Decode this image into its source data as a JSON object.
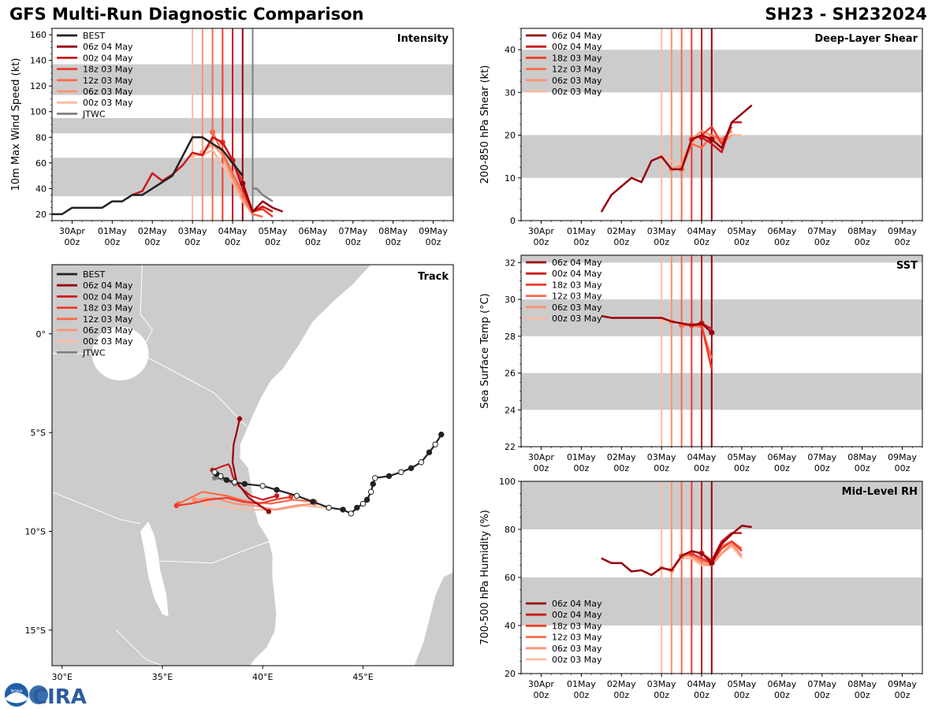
{
  "header": {
    "title": "GFS Multi-Run Diagnostic Comparison",
    "storm_id": "SH23 - SH232024"
  },
  "colors": {
    "best": "#222222",
    "jtwc": "#808080",
    "band": "#cccccc",
    "run_06z04": "#99000d",
    "run_00z04": "#cb181d",
    "run_18z03": "#ef3b2c",
    "run_12z03": "#fb6a4a",
    "run_06z03": "#fc9272",
    "run_00z03": "#fcbba1",
    "land": "#cccccc"
  },
  "time_axis": {
    "days": [
      "30Apr",
      "01May",
      "02May",
      "03May",
      "04May",
      "05May",
      "06May",
      "07May",
      "08May",
      "09May"
    ],
    "hour_label": "00z"
  },
  "logos": {
    "noaa": "NOAA",
    "cira": "CIRA"
  },
  "chart_data": [
    {
      "id": "intensity",
      "type": "line",
      "title": "Intensity",
      "xlabel": "",
      "ylabel": "10m Max Wind Speed (kt)",
      "x_units": "days since 30Apr 00z",
      "ylim": [
        15,
        165
      ],
      "yticks": [
        20,
        40,
        60,
        80,
        100,
        120,
        140,
        160
      ],
      "bands": [
        [
          34,
          64
        ],
        [
          83,
          95
        ],
        [
          113,
          137
        ]
      ],
      "init_lines": [
        3.0,
        3.25,
        3.5,
        3.75,
        4.0,
        4.25
      ],
      "jtwc_line": 4.5,
      "legend": [
        "BEST",
        "06z 04 May",
        "00z 04 May",
        "18z 03 May",
        "12z 03 May",
        "06z 03 May",
        "00z 03 May",
        "JTWC"
      ],
      "series": [
        {
          "name": "BEST",
          "color_key": "best",
          "x": [
            -0.5,
            -0.25,
            0,
            0.25,
            0.5,
            0.75,
            1.0,
            1.25,
            1.5,
            1.75,
            2.0,
            2.25,
            2.5,
            2.75,
            3.0,
            3.25,
            3.5,
            3.75,
            4.0,
            4.25
          ],
          "y": [
            20,
            20,
            25,
            25,
            25,
            25,
            30,
            30,
            35,
            35,
            40,
            45,
            50,
            65,
            80,
            80,
            75,
            70,
            60,
            50
          ]
        },
        {
          "name": "06z 04 May",
          "color_key": "run_06z04",
          "x": [
            4.25,
            4.5,
            4.75,
            5.0,
            5.25
          ],
          "y": [
            44,
            22,
            30,
            25,
            22
          ],
          "markers": [
            4.25
          ]
        },
        {
          "name": "00z 04 May",
          "color_key": "run_00z04",
          "x": [
            1.5,
            1.75,
            2.0,
            2.25,
            2.5,
            2.75,
            3.0,
            3.25,
            3.5,
            3.75,
            4.0,
            4.25,
            4.5,
            4.75,
            5.0
          ],
          "y": [
            35,
            38,
            52,
            46,
            51,
            58,
            68,
            66,
            80,
            76,
            62,
            40,
            22,
            26,
            22
          ],
          "markers": [
            4.0
          ]
        },
        {
          "name": "18z 03 May",
          "color_key": "run_18z03",
          "x": [
            3.75,
            4.0,
            4.25,
            4.5,
            4.75,
            5.0
          ],
          "y": [
            76,
            62,
            45,
            22,
            24,
            18
          ],
          "markers": [
            3.75
          ]
        },
        {
          "name": "12z 03 May",
          "color_key": "run_12z03",
          "x": [
            3.5,
            3.75,
            4.0,
            4.25,
            4.5,
            4.75
          ],
          "y": [
            84,
            68,
            52,
            36,
            20,
            18
          ],
          "markers": [
            3.5
          ]
        },
        {
          "name": "06z 03 May",
          "color_key": "run_06z03",
          "x": [
            3.25,
            3.5,
            3.75,
            4.0,
            4.25,
            4.5
          ],
          "y": [
            68,
            75,
            66,
            48,
            32,
            20
          ],
          "markers": [
            3.25
          ]
        },
        {
          "name": "00z 03 May",
          "color_key": "run_00z03",
          "x": [
            3.0,
            3.25,
            3.5,
            3.75,
            4.0,
            4.25,
            4.5
          ],
          "y": [
            66,
            66,
            70,
            58,
            45,
            30,
            20
          ],
          "markers": [
            3.0
          ]
        },
        {
          "name": "JTWC",
          "color_key": "jtwc",
          "x": [
            4.5,
            4.6,
            4.75,
            5.0
          ],
          "y": [
            40,
            40,
            35,
            30
          ]
        }
      ]
    },
    {
      "id": "shear",
      "type": "line",
      "title": "Deep-Layer Shear",
      "ylabel": "200-850 hPa Shear (kt)",
      "ylim": [
        0,
        45
      ],
      "yticks": [
        0,
        10,
        20,
        30,
        40
      ],
      "bands": [
        [
          10,
          20
        ],
        [
          30,
          40
        ]
      ],
      "init_lines": [
        3.0,
        3.25,
        3.5,
        3.75,
        4.0,
        4.25
      ],
      "legend": [
        "06z 04 May",
        "00z 04 May",
        "18z 03 May",
        "12z 03 May",
        "06z 03 May",
        "00z 03 May"
      ],
      "series": [
        {
          "name": "06z 04 May",
          "color_key": "run_06z04",
          "x": [
            1.5,
            1.75,
            2.0,
            2.25,
            2.5,
            2.75,
            3.0,
            3.25,
            3.5,
            3.75,
            4.0,
            4.25,
            4.5,
            4.75,
            5.0,
            5.25
          ],
          "y": [
            2,
            6,
            8,
            10,
            9,
            14,
            15,
            12,
            12,
            19,
            20,
            19,
            17,
            23,
            25,
            27
          ],
          "markers": [
            4.25
          ]
        },
        {
          "name": "00z 04 May",
          "color_key": "run_00z04",
          "x": [
            4.0,
            4.25,
            4.5,
            4.75,
            5.0
          ],
          "y": [
            19.5,
            18,
            16,
            23,
            23
          ],
          "markers": [
            4.0
          ]
        },
        {
          "name": "18z 03 May",
          "color_key": "run_18z03",
          "x": [
            3.75,
            4.0,
            4.25,
            4.5,
            4.75
          ],
          "y": [
            19,
            20,
            22,
            18,
            22
          ],
          "markers": [
            3.75
          ]
        },
        {
          "name": "12z 03 May",
          "color_key": "run_12z03",
          "x": [
            3.5,
            3.75,
            4.0,
            4.25,
            4.5,
            4.75
          ],
          "y": [
            12,
            18,
            17,
            20,
            19,
            21
          ],
          "markers": [
            3.5
          ]
        },
        {
          "name": "06z 03 May",
          "color_key": "run_06z03",
          "x": [
            3.25,
            3.5,
            3.75,
            4.0,
            4.25,
            4.5,
            4.75
          ],
          "y": [
            12,
            13,
            19,
            21,
            20,
            18,
            20
          ],
          "markers": [
            3.25
          ]
        },
        {
          "name": "00z 03 May",
          "color_key": "run_00z03",
          "x": [
            3.0,
            3.25,
            3.5,
            3.75,
            4.0,
            4.25,
            4.5,
            4.75,
            5.0
          ],
          "y": [
            15,
            14,
            13,
            18,
            20,
            20,
            18,
            20,
            20
          ],
          "markers": [
            3.0
          ]
        }
      ]
    },
    {
      "id": "sst",
      "type": "line",
      "title": "SST",
      "ylabel": "Sea Surface Temp (°C)",
      "ylim": [
        22,
        32.4
      ],
      "yticks": [
        22,
        24,
        26,
        28,
        30,
        32
      ],
      "bands": [
        [
          24,
          26
        ],
        [
          28,
          30
        ],
        [
          32,
          32.4
        ]
      ],
      "init_lines": [
        3.0,
        3.25,
        3.5,
        3.75,
        4.0,
        4.25
      ],
      "legend": [
        "06z 04 May",
        "00z 04 May",
        "18z 03 May",
        "12z 03 May",
        "06z 03 May",
        "00z 03 May"
      ],
      "series": [
        {
          "name": "06z 04 May",
          "color_key": "run_06z04",
          "x": [
            1.5,
            1.75,
            2.0,
            2.25,
            2.5,
            2.75,
            3.0,
            3.25,
            3.5,
            3.75,
            4.0,
            4.25
          ],
          "y": [
            29.1,
            29.0,
            29.0,
            29.0,
            29.0,
            29.0,
            29.0,
            28.8,
            28.7,
            28.6,
            28.7,
            28.2
          ],
          "markers": [
            4.25
          ]
        },
        {
          "name": "00z 04 May",
          "color_key": "run_00z04",
          "x": [
            4.0,
            4.25
          ],
          "y": [
            28.7,
            28.4
          ],
          "markers": [
            4.0
          ]
        },
        {
          "name": "18z 03 May",
          "color_key": "run_18z03",
          "x": [
            3.75,
            4.0,
            4.25
          ],
          "y": [
            28.6,
            28.6,
            26.2
          ],
          "markers": [
            3.75
          ]
        },
        {
          "name": "12z 03 May",
          "color_key": "run_12z03",
          "x": [
            3.5,
            3.75,
            4.0,
            4.25
          ],
          "y": [
            28.6,
            28.6,
            28.5,
            26.8
          ],
          "markers": [
            3.5
          ]
        },
        {
          "name": "06z 03 May",
          "color_key": "run_06z03",
          "x": [
            3.25,
            3.5,
            3.75,
            4.0
          ],
          "y": [
            28.8,
            28.7,
            28.6,
            28.5
          ],
          "markers": [
            3.25
          ]
        },
        {
          "name": "00z 03 May",
          "color_key": "run_00z03",
          "x": [
            3.0,
            3.25,
            3.5,
            3.75
          ],
          "y": [
            28.9,
            28.8,
            28.7,
            28.6
          ],
          "markers": [
            3.0
          ]
        }
      ]
    },
    {
      "id": "rh",
      "type": "line",
      "title": "Mid-Level RH",
      "ylabel": "700-500 hPa Humidity (%)",
      "ylim": [
        20,
        100
      ],
      "yticks": [
        20,
        40,
        60,
        80,
        100
      ],
      "bands": [
        [
          40,
          60
        ],
        [
          80,
          100
        ]
      ],
      "init_lines": [
        3.0,
        3.25,
        3.5,
        3.75,
        4.0,
        4.25
      ],
      "legend": [
        "06z 04 May",
        "00z 04 May",
        "18z 03 May",
        "12z 03 May",
        "06z 03 May",
        "00z 03 May"
      ],
      "series": [
        {
          "name": "06z 04 May",
          "color_key": "run_06z04",
          "x": [
            1.5,
            1.75,
            2.0,
            2.25,
            2.5,
            2.75,
            3.0,
            3.25,
            3.5,
            3.75,
            4.0,
            4.25,
            4.5,
            4.75,
            5.0,
            5.25
          ],
          "y": [
            68,
            66,
            66,
            62.5,
            63,
            61,
            64,
            63,
            69,
            71,
            70,
            66,
            74,
            78,
            81.5,
            81
          ],
          "markers": [
            4.25
          ]
        },
        {
          "name": "00z 04 May",
          "color_key": "run_00z04",
          "x": [
            4.0,
            4.25,
            4.5,
            4.75,
            5.0
          ],
          "y": [
            70,
            67,
            75,
            78.5,
            78.5
          ],
          "markers": [
            4.0
          ]
        },
        {
          "name": "18z 03 May",
          "color_key": "run_18z03",
          "x": [
            3.75,
            4.0,
            4.25,
            4.5,
            4.75,
            5.0
          ],
          "y": [
            70,
            68,
            66,
            72,
            75,
            71
          ],
          "markers": [
            3.75
          ]
        },
        {
          "name": "12z 03 May",
          "color_key": "run_12z03",
          "x": [
            3.5,
            3.75,
            4.0,
            4.25,
            4.5,
            4.75,
            5.0
          ],
          "y": [
            69,
            70,
            67,
            66,
            73,
            75,
            72
          ],
          "markers": [
            3.5
          ]
        },
        {
          "name": "06z 03 May",
          "color_key": "run_06z03",
          "x": [
            3.25,
            3.5,
            3.75,
            4.0,
            4.25,
            4.5,
            4.75,
            5.0
          ],
          "y": [
            63,
            69,
            69,
            66,
            65,
            70,
            74,
            69
          ],
          "markers": [
            3.25
          ]
        },
        {
          "name": "00z 03 May",
          "color_key": "run_00z03",
          "x": [
            3.0,
            3.25,
            3.5,
            3.75,
            4.0,
            4.25,
            4.5,
            4.75,
            5.0
          ],
          "y": [
            64,
            63,
            68,
            68,
            65,
            65,
            70,
            73,
            68
          ],
          "markers": [
            3.0
          ]
        }
      ]
    },
    {
      "id": "track",
      "type": "scatter",
      "title": "Track",
      "xlim": [
        29.5,
        49.5
      ],
      "ylim": [
        -16.8,
        3.5
      ],
      "xticks": [
        30,
        35,
        40,
        45
      ],
      "xtick_labels": [
        "30°E",
        "35°E",
        "40°E",
        "45°E"
      ],
      "yticks": [
        0,
        -5,
        -10,
        -15
      ],
      "ytick_labels": [
        "0°",
        "5°S",
        "10°S",
        "15°S"
      ],
      "legend": [
        "BEST",
        "06z 04 May",
        "00z 04 May",
        "18z 03 May",
        "12z 03 May",
        "06z 03 May",
        "00z 03 May",
        "JTWC"
      ],
      "series": [
        {
          "name": "BEST",
          "color_key": "best",
          "lon": [
            48.9,
            48.6,
            48.3,
            47.9,
            47.4,
            46.9,
            46.3,
            45.6,
            45.5,
            45.4,
            45.2,
            45.0,
            44.7,
            44.4,
            44.0,
            43.3,
            42.5,
            41.7,
            40.7,
            40.0,
            39.1,
            38.6,
            38.2,
            37.9,
            37.7,
            37.6
          ],
          "lat": [
            -5.1,
            -5.6,
            -6.0,
            -6.5,
            -6.8,
            -7.0,
            -7.2,
            -7.3,
            -7.6,
            -8.0,
            -8.4,
            -8.6,
            -8.8,
            -9.1,
            -8.9,
            -8.8,
            -8.5,
            -8.2,
            -7.9,
            -7.7,
            -7.6,
            -7.5,
            -7.4,
            -7.2,
            -7.1,
            -7.0
          ],
          "hollow_every_other": true
        },
        {
          "name": "06z 04 May",
          "color_key": "run_06z04",
          "lon": [
            38.85,
            38.7,
            38.55,
            38.5,
            38.7,
            39.3,
            40.3
          ],
          "lat": [
            -4.3,
            -5.0,
            -5.6,
            -6.5,
            -7.5,
            -8.3,
            -9.0
          ]
        },
        {
          "name": "00z 04 May",
          "color_key": "run_00z04",
          "lon": [
            40.7,
            40.0,
            39.4,
            38.8,
            38.5,
            38.4,
            38.3,
            38.0,
            37.5
          ],
          "lat": [
            -8.2,
            -8.4,
            -8.2,
            -7.7,
            -7.2,
            -6.8,
            -6.6,
            -6.7,
            -6.9
          ]
        },
        {
          "name": "18z 03 May",
          "color_key": "run_18z03",
          "lon": [
            41.4,
            40.6,
            39.8,
            39.0,
            38.2,
            37.3,
            36.4,
            35.7
          ],
          "lat": [
            -8.25,
            -8.4,
            -8.6,
            -8.5,
            -8.3,
            -8.4,
            -8.6,
            -8.7
          ]
        },
        {
          "name": "12z 03 May",
          "color_key": "run_12z03",
          "lon": [
            42.6,
            41.5,
            40.4,
            39.3,
            38.2,
            37.0,
            35.8
          ],
          "lat": [
            -8.5,
            -8.4,
            -8.6,
            -8.5,
            -8.2,
            -8.0,
            -8.6
          ]
        },
        {
          "name": "06z 03 May",
          "color_key": "run_06z03",
          "lon": [
            42.6,
            41.6,
            40.6,
            39.6,
            38.6,
            37.6,
            36.6
          ],
          "lat": [
            -8.6,
            -8.7,
            -8.9,
            -8.7,
            -8.6,
            -8.3,
            -8.4
          ]
        },
        {
          "name": "00z 03 May",
          "color_key": "run_00z03",
          "lon": [
            43.2,
            42.0,
            40.8,
            39.6,
            38.4,
            37.2
          ],
          "lat": [
            -8.8,
            -8.7,
            -8.9,
            -8.9,
            -8.8,
            -8.6
          ]
        },
        {
          "name": "JTWC",
          "color_key": "jtwc",
          "lon": [
            38.6,
            38.1,
            37.6
          ],
          "lat": [
            -7.6,
            -7.4,
            -7.3
          ]
        }
      ]
    }
  ]
}
